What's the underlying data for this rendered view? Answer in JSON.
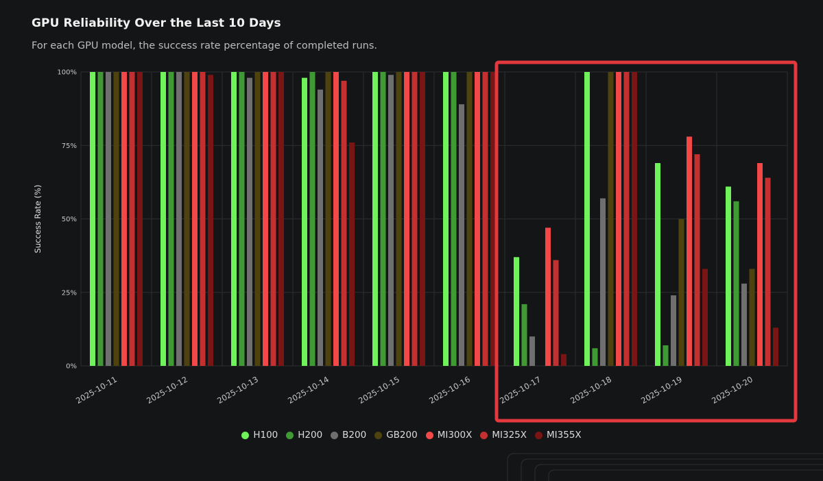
{
  "header": {
    "title": "GPU Reliability Over the Last 10 Days",
    "subtitle": "For each GPU model, the success rate percentage of completed runs."
  },
  "colors": {
    "H100": "#6ff25a",
    "H200": "#3f9a34",
    "B200": "#6f6f6f",
    "GB200": "#4e420e",
    "MI300X": "#f24848",
    "MI325X": "#c43030",
    "MI355X": "#7a1515",
    "highlight": "#e2383e",
    "grid": "#2c2e31"
  },
  "chart_data": {
    "type": "bar",
    "title": "GPU Reliability Over the Last 10 Days",
    "xlabel": "",
    "ylabel": "Success Rate (%)",
    "ylim": [
      0,
      100
    ],
    "yticks": [
      "0%",
      "25%",
      "50%",
      "75%",
      "100%"
    ],
    "categories": [
      "2025-10-11",
      "2025-10-12",
      "2025-10-13",
      "2025-10-14",
      "2025-10-15",
      "2025-10-16",
      "2025-10-17",
      "2025-10-18",
      "2025-10-19",
      "2025-10-20"
    ],
    "series": [
      {
        "name": "H100",
        "values": [
          100,
          100,
          100,
          98,
          100,
          100,
          37,
          100,
          69,
          61
        ]
      },
      {
        "name": "H200",
        "values": [
          100,
          100,
          100,
          100,
          100,
          100,
          21,
          6,
          7,
          56
        ]
      },
      {
        "name": "B200",
        "values": [
          100,
          100,
          98,
          94,
          99,
          89,
          10,
          57,
          24,
          28
        ]
      },
      {
        "name": "GB200",
        "values": [
          100,
          100,
          100,
          100,
          100,
          100,
          null,
          100,
          50,
          33
        ]
      },
      {
        "name": "MI300X",
        "values": [
          100,
          100,
          100,
          100,
          100,
          100,
          47,
          100,
          78,
          69
        ]
      },
      {
        "name": "MI325X",
        "values": [
          100,
          100,
          100,
          97,
          100,
          100,
          36,
          100,
          72,
          64
        ]
      },
      {
        "name": "MI355X",
        "values": [
          100,
          99,
          100,
          76,
          100,
          100,
          4,
          100,
          33,
          13
        ]
      }
    ],
    "highlight_categories": [
      "2025-10-17",
      "2025-10-18",
      "2025-10-19",
      "2025-10-20"
    ],
    "legend": [
      "H100",
      "H200",
      "B200",
      "GB200",
      "MI300X",
      "MI325X",
      "MI355X"
    ]
  }
}
